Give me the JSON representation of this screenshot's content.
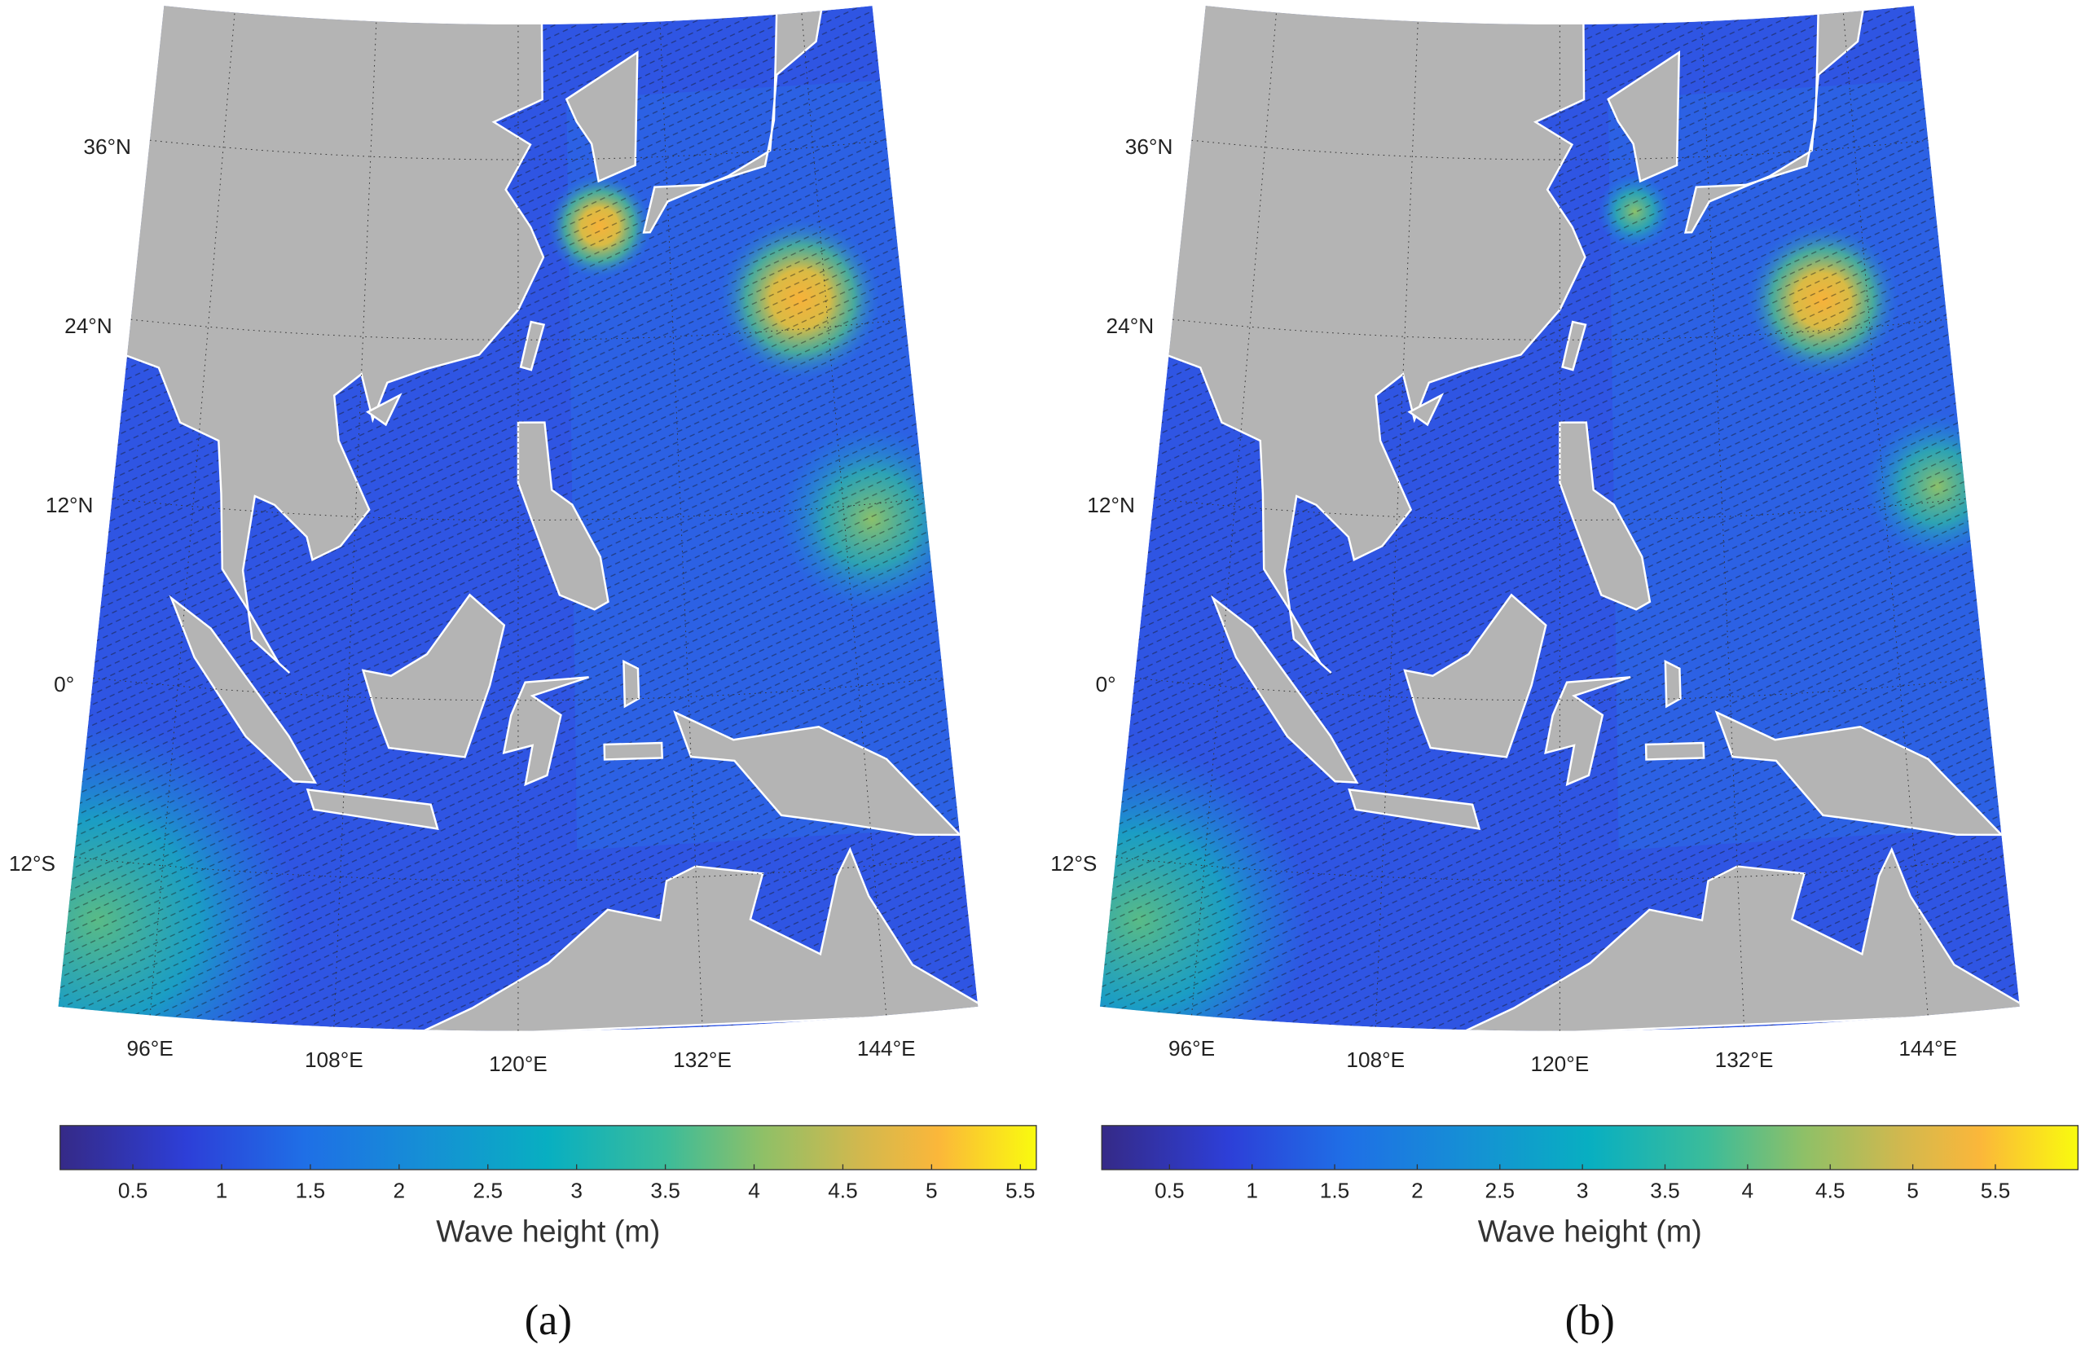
{
  "panels": [
    {
      "label": "(a)",
      "lat_ticks": [
        {
          "value": 36,
          "label": "36°N"
        },
        {
          "value": 24,
          "label": "24°N"
        },
        {
          "value": 12,
          "label": "12°N"
        },
        {
          "value": 0,
          "label": "0°"
        },
        {
          "value": -12,
          "label": "12°S"
        }
      ],
      "lon_ticks": [
        {
          "value": 96,
          "label": "96°E"
        },
        {
          "value": 108,
          "label": "108°E"
        },
        {
          "value": 120,
          "label": "120°E"
        },
        {
          "value": 132,
          "label": "132°E"
        },
        {
          "value": 144,
          "label": "144°E"
        }
      ],
      "colorbar": {
        "label": "Wave height (m)",
        "clim": [
          0.09,
          5.59
        ],
        "ticks": [
          0.5,
          1,
          1.5,
          2,
          2.5,
          3,
          3.5,
          4,
          4.5,
          5,
          5.5
        ]
      }
    },
    {
      "label": "(b)",
      "lat_ticks": [
        {
          "value": 36,
          "label": "36°N"
        },
        {
          "value": 24,
          "label": "24°N"
        },
        {
          "value": 12,
          "label": "12°N"
        },
        {
          "value": 0,
          "label": "0°"
        },
        {
          "value": -12,
          "label": "12°S"
        }
      ],
      "lon_ticks": [
        {
          "value": 96,
          "label": "96°E"
        },
        {
          "value": 108,
          "label": "108°E"
        },
        {
          "value": 120,
          "label": "120°E"
        },
        {
          "value": 132,
          "label": "132°E"
        },
        {
          "value": 144,
          "label": "144°E"
        }
      ],
      "colorbar": {
        "label": "Wave height (m)",
        "clim": [
          0.09,
          6.0
        ],
        "ticks": [
          0.5,
          1,
          1.5,
          2,
          2.5,
          3,
          3.5,
          4,
          4.5,
          5,
          5.5
        ]
      }
    }
  ]
}
